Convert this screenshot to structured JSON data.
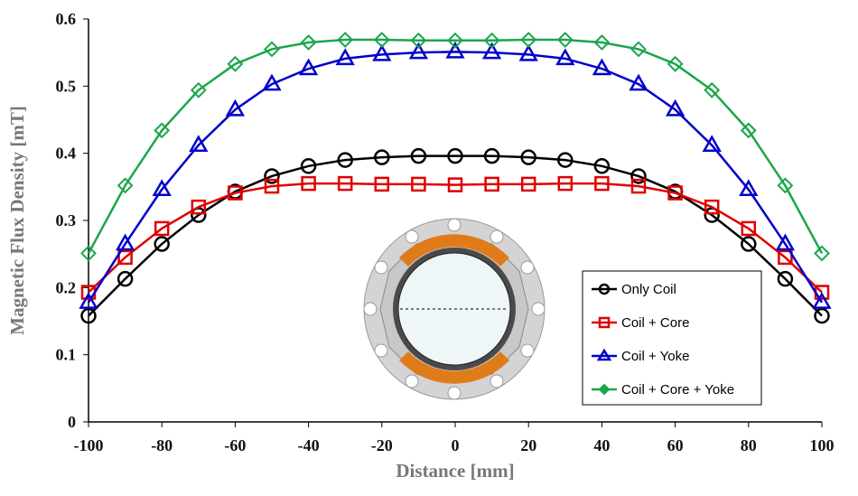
{
  "chart_data": {
    "type": "line",
    "xlabel": "Distance [mm]",
    "ylabel": "Magnetic Flux Density [mT]",
    "xlim": [
      -100,
      100
    ],
    "ylim": [
      0,
      0.6
    ],
    "x_ticks": [
      "-100",
      "-80",
      "-60",
      "-40",
      "-20",
      "0",
      "20",
      "40",
      "60",
      "80",
      "100"
    ],
    "y_ticks": [
      "0",
      "0.1",
      "0.2",
      "0.3",
      "0.4",
      "0.5",
      "0.6"
    ],
    "grid": false,
    "legend_position": "bottom-right",
    "x": [
      -100,
      -90,
      -80,
      -70,
      -60,
      -50,
      -40,
      -30,
      -20,
      -10,
      0,
      10,
      20,
      30,
      40,
      50,
      60,
      70,
      80,
      90,
      100
    ],
    "series": [
      {
        "name": "Only Coil",
        "color": "#000000",
        "marker": "circle",
        "values": [
          0.158,
          0.213,
          0.265,
          0.308,
          0.343,
          0.366,
          0.381,
          0.39,
          0.394,
          0.396,
          0.396,
          0.396,
          0.394,
          0.39,
          0.381,
          0.366,
          0.343,
          0.308,
          0.265,
          0.213,
          0.158
        ]
      },
      {
        "name": "Coil + Core",
        "color": "#e00000",
        "marker": "square",
        "values": [
          0.193,
          0.245,
          0.288,
          0.32,
          0.341,
          0.351,
          0.355,
          0.355,
          0.354,
          0.354,
          0.353,
          0.354,
          0.354,
          0.355,
          0.355,
          0.351,
          0.341,
          0.32,
          0.288,
          0.245,
          0.193
        ]
      },
      {
        "name": "Coil + Yoke",
        "color": "#0000cc",
        "marker": "triangle",
        "values": [
          0.178,
          0.265,
          0.346,
          0.412,
          0.465,
          0.503,
          0.526,
          0.541,
          0.547,
          0.55,
          0.551,
          0.55,
          0.547,
          0.541,
          0.526,
          0.503,
          0.465,
          0.412,
          0.346,
          0.265,
          0.178
        ]
      },
      {
        "name": "Coil + Core + Yoke",
        "color": "#1aa64a",
        "marker": "diamond",
        "values": [
          0.251,
          0.352,
          0.434,
          0.494,
          0.533,
          0.555,
          0.565,
          0.569,
          0.569,
          0.568,
          0.568,
          0.568,
          0.569,
          0.569,
          0.565,
          0.555,
          0.533,
          0.494,
          0.434,
          0.352,
          0.251
        ]
      }
    ]
  }
}
